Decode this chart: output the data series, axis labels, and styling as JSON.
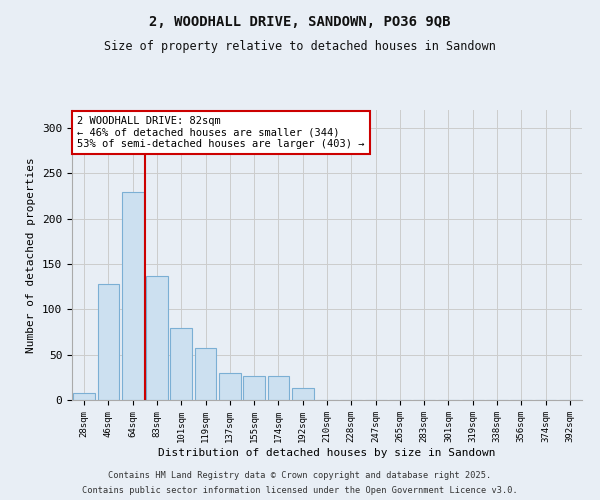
{
  "title1": "2, WOODHALL DRIVE, SANDOWN, PO36 9QB",
  "title2": "Size of property relative to detached houses in Sandown",
  "xlabel": "Distribution of detached houses by size in Sandown",
  "ylabel": "Number of detached properties",
  "categories": [
    "28sqm",
    "46sqm",
    "64sqm",
    "83sqm",
    "101sqm",
    "119sqm",
    "137sqm",
    "155sqm",
    "174sqm",
    "192sqm",
    "210sqm",
    "228sqm",
    "247sqm",
    "265sqm",
    "283sqm",
    "301sqm",
    "319sqm",
    "338sqm",
    "356sqm",
    "374sqm",
    "392sqm"
  ],
  "values": [
    8,
    128,
    229,
    137,
    79,
    57,
    30,
    27,
    27,
    13,
    0,
    0,
    0,
    0,
    0,
    0,
    0,
    0,
    0,
    0,
    0
  ],
  "bar_color": "#cce0f0",
  "bar_edge_color": "#7bafd4",
  "vline_color": "#cc0000",
  "vline_x": 2.5,
  "annotation_title": "2 WOODHALL DRIVE: 82sqm",
  "annotation_line1": "← 46% of detached houses are smaller (344)",
  "annotation_line2": "53% of semi-detached houses are larger (403) →",
  "ylim": [
    0,
    320
  ],
  "yticks": [
    0,
    50,
    100,
    150,
    200,
    250,
    300
  ],
  "grid_color": "#cccccc",
  "bg_color": "#e8eef5",
  "footer1": "Contains HM Land Registry data © Crown copyright and database right 2025.",
  "footer2": "Contains public sector information licensed under the Open Government Licence v3.0."
}
